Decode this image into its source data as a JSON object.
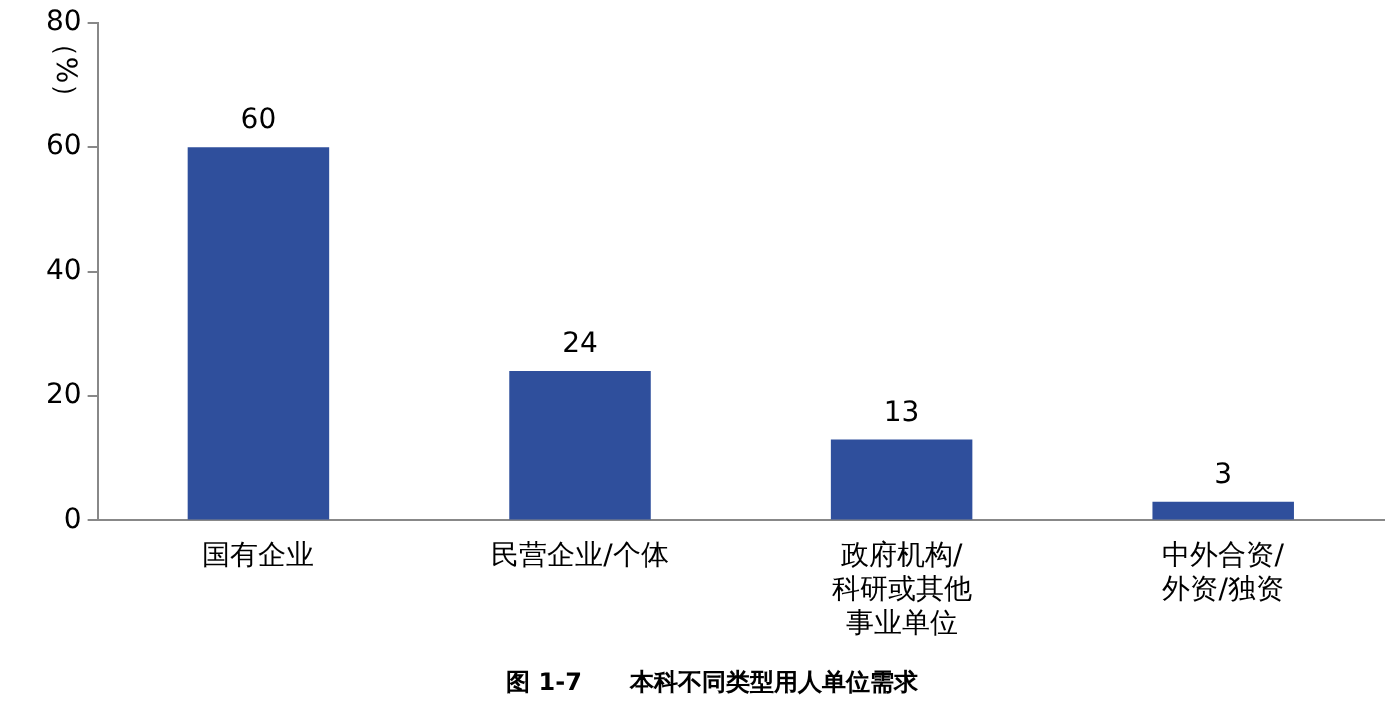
{
  "chart_data": {
    "type": "bar",
    "title": "图 1-7　　本科不同类型用人单位需求",
    "ylabel": "（%）",
    "categories": [
      "国有企业",
      "民营企业/个体",
      "政府机构/科研或其他事业单位",
      "中外合资/外资/独资"
    ],
    "values": [
      60,
      24,
      13,
      3
    ],
    "color": "#2f4f9c",
    "data_labels": true,
    "ylim": [
      0,
      80
    ],
    "yticks": [
      0,
      20,
      40,
      60,
      80
    ],
    "grid": false,
    "legend": false
  }
}
